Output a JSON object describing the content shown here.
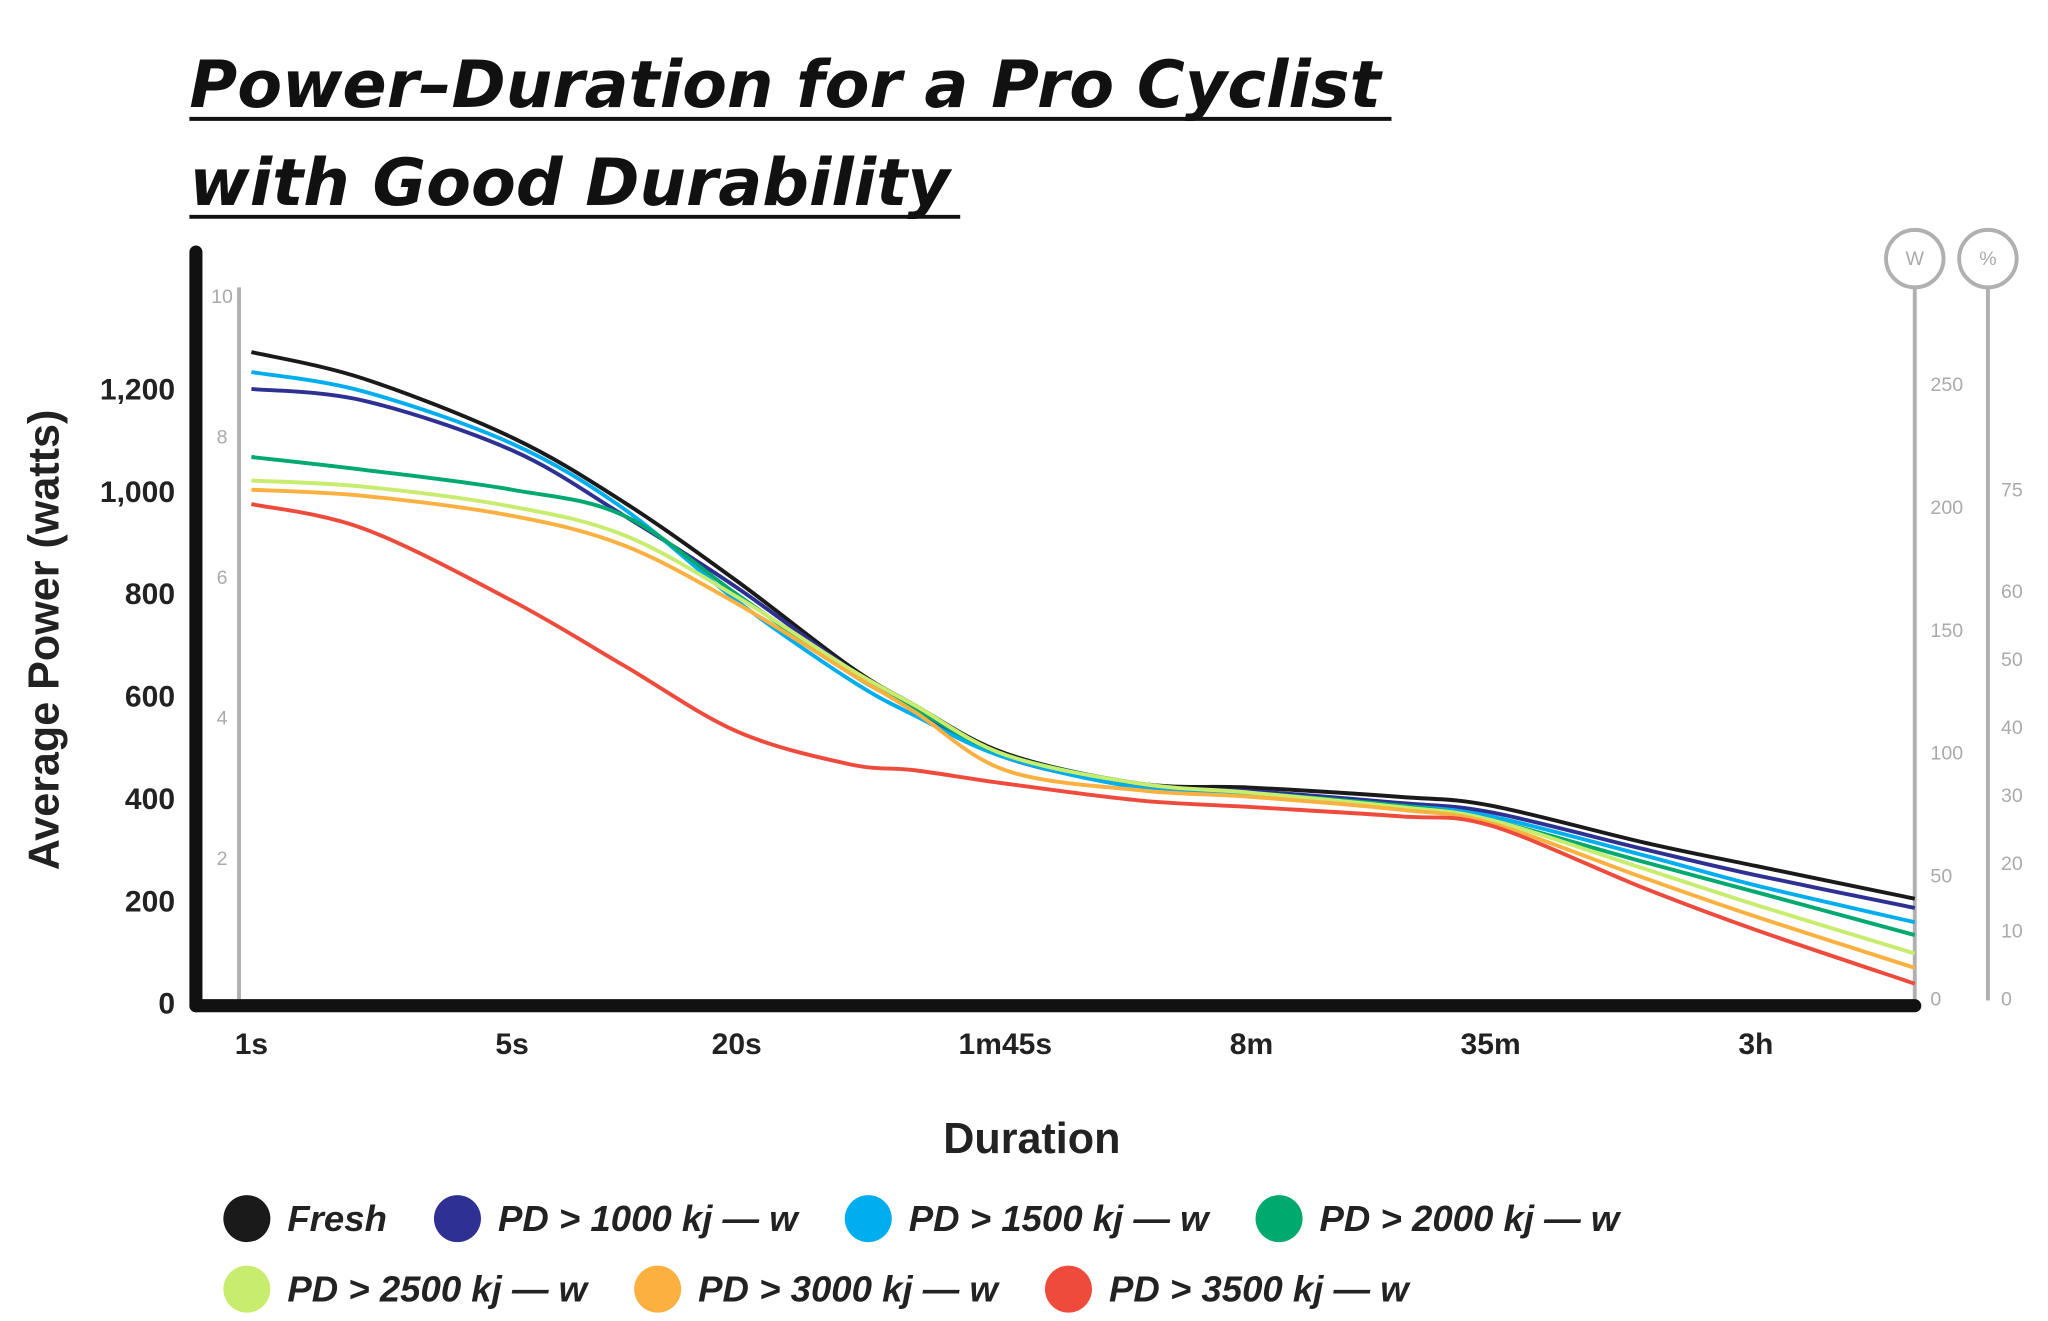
{
  "chart_data": {
    "type": "line",
    "title": [
      "Power–Duration for a Pro Cyclist",
      "with Good Durability"
    ],
    "xlabel": "Duration",
    "ylabel": "Average Power (watts)",
    "xlog": true,
    "xlim": [
      0.71,
      28800
    ],
    "xticks": [
      {
        "value": 1,
        "label": "1s"
      },
      {
        "value": 5,
        "label": "5s"
      },
      {
        "value": 20,
        "label": "20s"
      },
      {
        "value": 105,
        "label": "1m45s"
      },
      {
        "value": 480,
        "label": "8m"
      },
      {
        "value": 2100,
        "label": "35m"
      },
      {
        "value": 10800,
        "label": "3h"
      }
    ],
    "ylim": [
      0,
      1480
    ],
    "yticks": [
      0,
      200,
      400,
      600,
      800,
      {
        "value": 1000,
        "label": "1,000"
      },
      {
        "value": 1200,
        "label": "1,200"
      }
    ],
    "y3lim": [
      0,
      10.15
    ],
    "y3ticks": [
      2,
      4,
      6,
      8,
      10
    ],
    "y2label": "W",
    "y2lim": [
      0,
      290
    ],
    "y2ticks": [
      0,
      50,
      100,
      150,
      200,
      250
    ],
    "y4label": "%",
    "y4lim": [
      0,
      105
    ],
    "y4ticks": [
      0,
      10,
      20,
      30,
      40,
      50,
      60,
      75
    ],
    "x": [
      1,
      2,
      5,
      10,
      20,
      40,
      60,
      105,
      240,
      480,
      1200,
      2100,
      5400,
      10800,
      28800
    ],
    "series": [
      {
        "name": "Fresh",
        "color": "#1a1a1a",
        "values": [
          1277,
          1225,
          1110,
          983,
          830,
          664,
          587,
          493,
          434,
          426,
          408,
          391,
          319,
          273,
          209
        ]
      },
      {
        "name": "PD > 1000 kj — w",
        "color": "#2e3192",
        "values": [
          1205,
          1182,
          1085,
          957,
          817,
          659,
          580,
          485,
          429,
          419,
          396,
          378,
          306,
          255,
          191
        ]
      },
      {
        "name": "PD > 1500 kj — w",
        "color": "#00aeef",
        "values": [
          1238,
          1200,
          1098,
          970,
          791,
          638,
          567,
          485,
          426,
          414,
          391,
          370,
          294,
          235,
          163
        ]
      },
      {
        "name": "PD > 2000 kj — w",
        "color": "#00a96e",
        "values": [
          1072,
          1047,
          1008,
          957,
          804,
          651,
          580,
          490,
          434,
          416,
          391,
          363,
          281,
          222,
          138
        ]
      },
      {
        "name": "PD > 2500 kj — w",
        "color": "#c8ec6e",
        "values": [
          1026,
          1014,
          975,
          919,
          799,
          659,
          587,
          490,
          434,
          416,
          388,
          363,
          268,
          197,
          102
        ]
      },
      {
        "name": "PD > 3000 kj — w",
        "color": "#fbb040",
        "values": [
          1008,
          996,
          957,
          899,
          786,
          651,
          574,
          460,
          421,
          408,
          383,
          357,
          250,
          174,
          74
        ]
      },
      {
        "name": "PD > 3500 kj — w",
        "color": "#ef4b3c",
        "values": [
          980,
          932,
          791,
          664,
          536,
          472,
          460,
          434,
          401,
          388,
          370,
          352,
          230,
          148,
          43
        ]
      }
    ]
  }
}
